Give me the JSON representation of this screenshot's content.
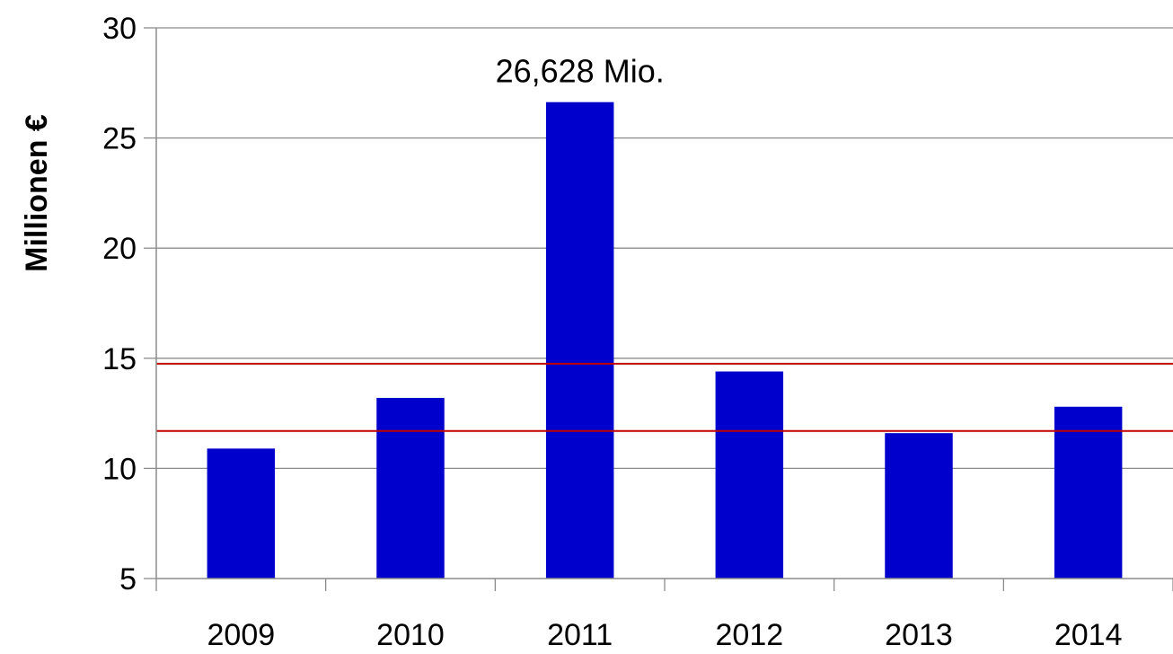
{
  "chart_data": {
    "type": "bar",
    "categories": [
      "2009",
      "2010",
      "2011",
      "2012",
      "2013",
      "2014"
    ],
    "values": [
      10.9,
      13.2,
      26.628,
      14.4,
      11.6,
      12.8
    ],
    "xlabel": "",
    "ylabel": "Millionen €",
    "ylim": [
      5,
      30
    ],
    "yticks": [
      5,
      10,
      15,
      20,
      25,
      30
    ],
    "grid": true,
    "reference_lines": [
      14.75,
      11.7
    ],
    "annotations": [
      {
        "category": "2011",
        "text": "26,628 Mio."
      }
    ],
    "colors": {
      "bar": "#0000CC",
      "reference_line": "#C00000",
      "grid": "#8C8C8C",
      "axis": "#8C8C8C"
    }
  }
}
